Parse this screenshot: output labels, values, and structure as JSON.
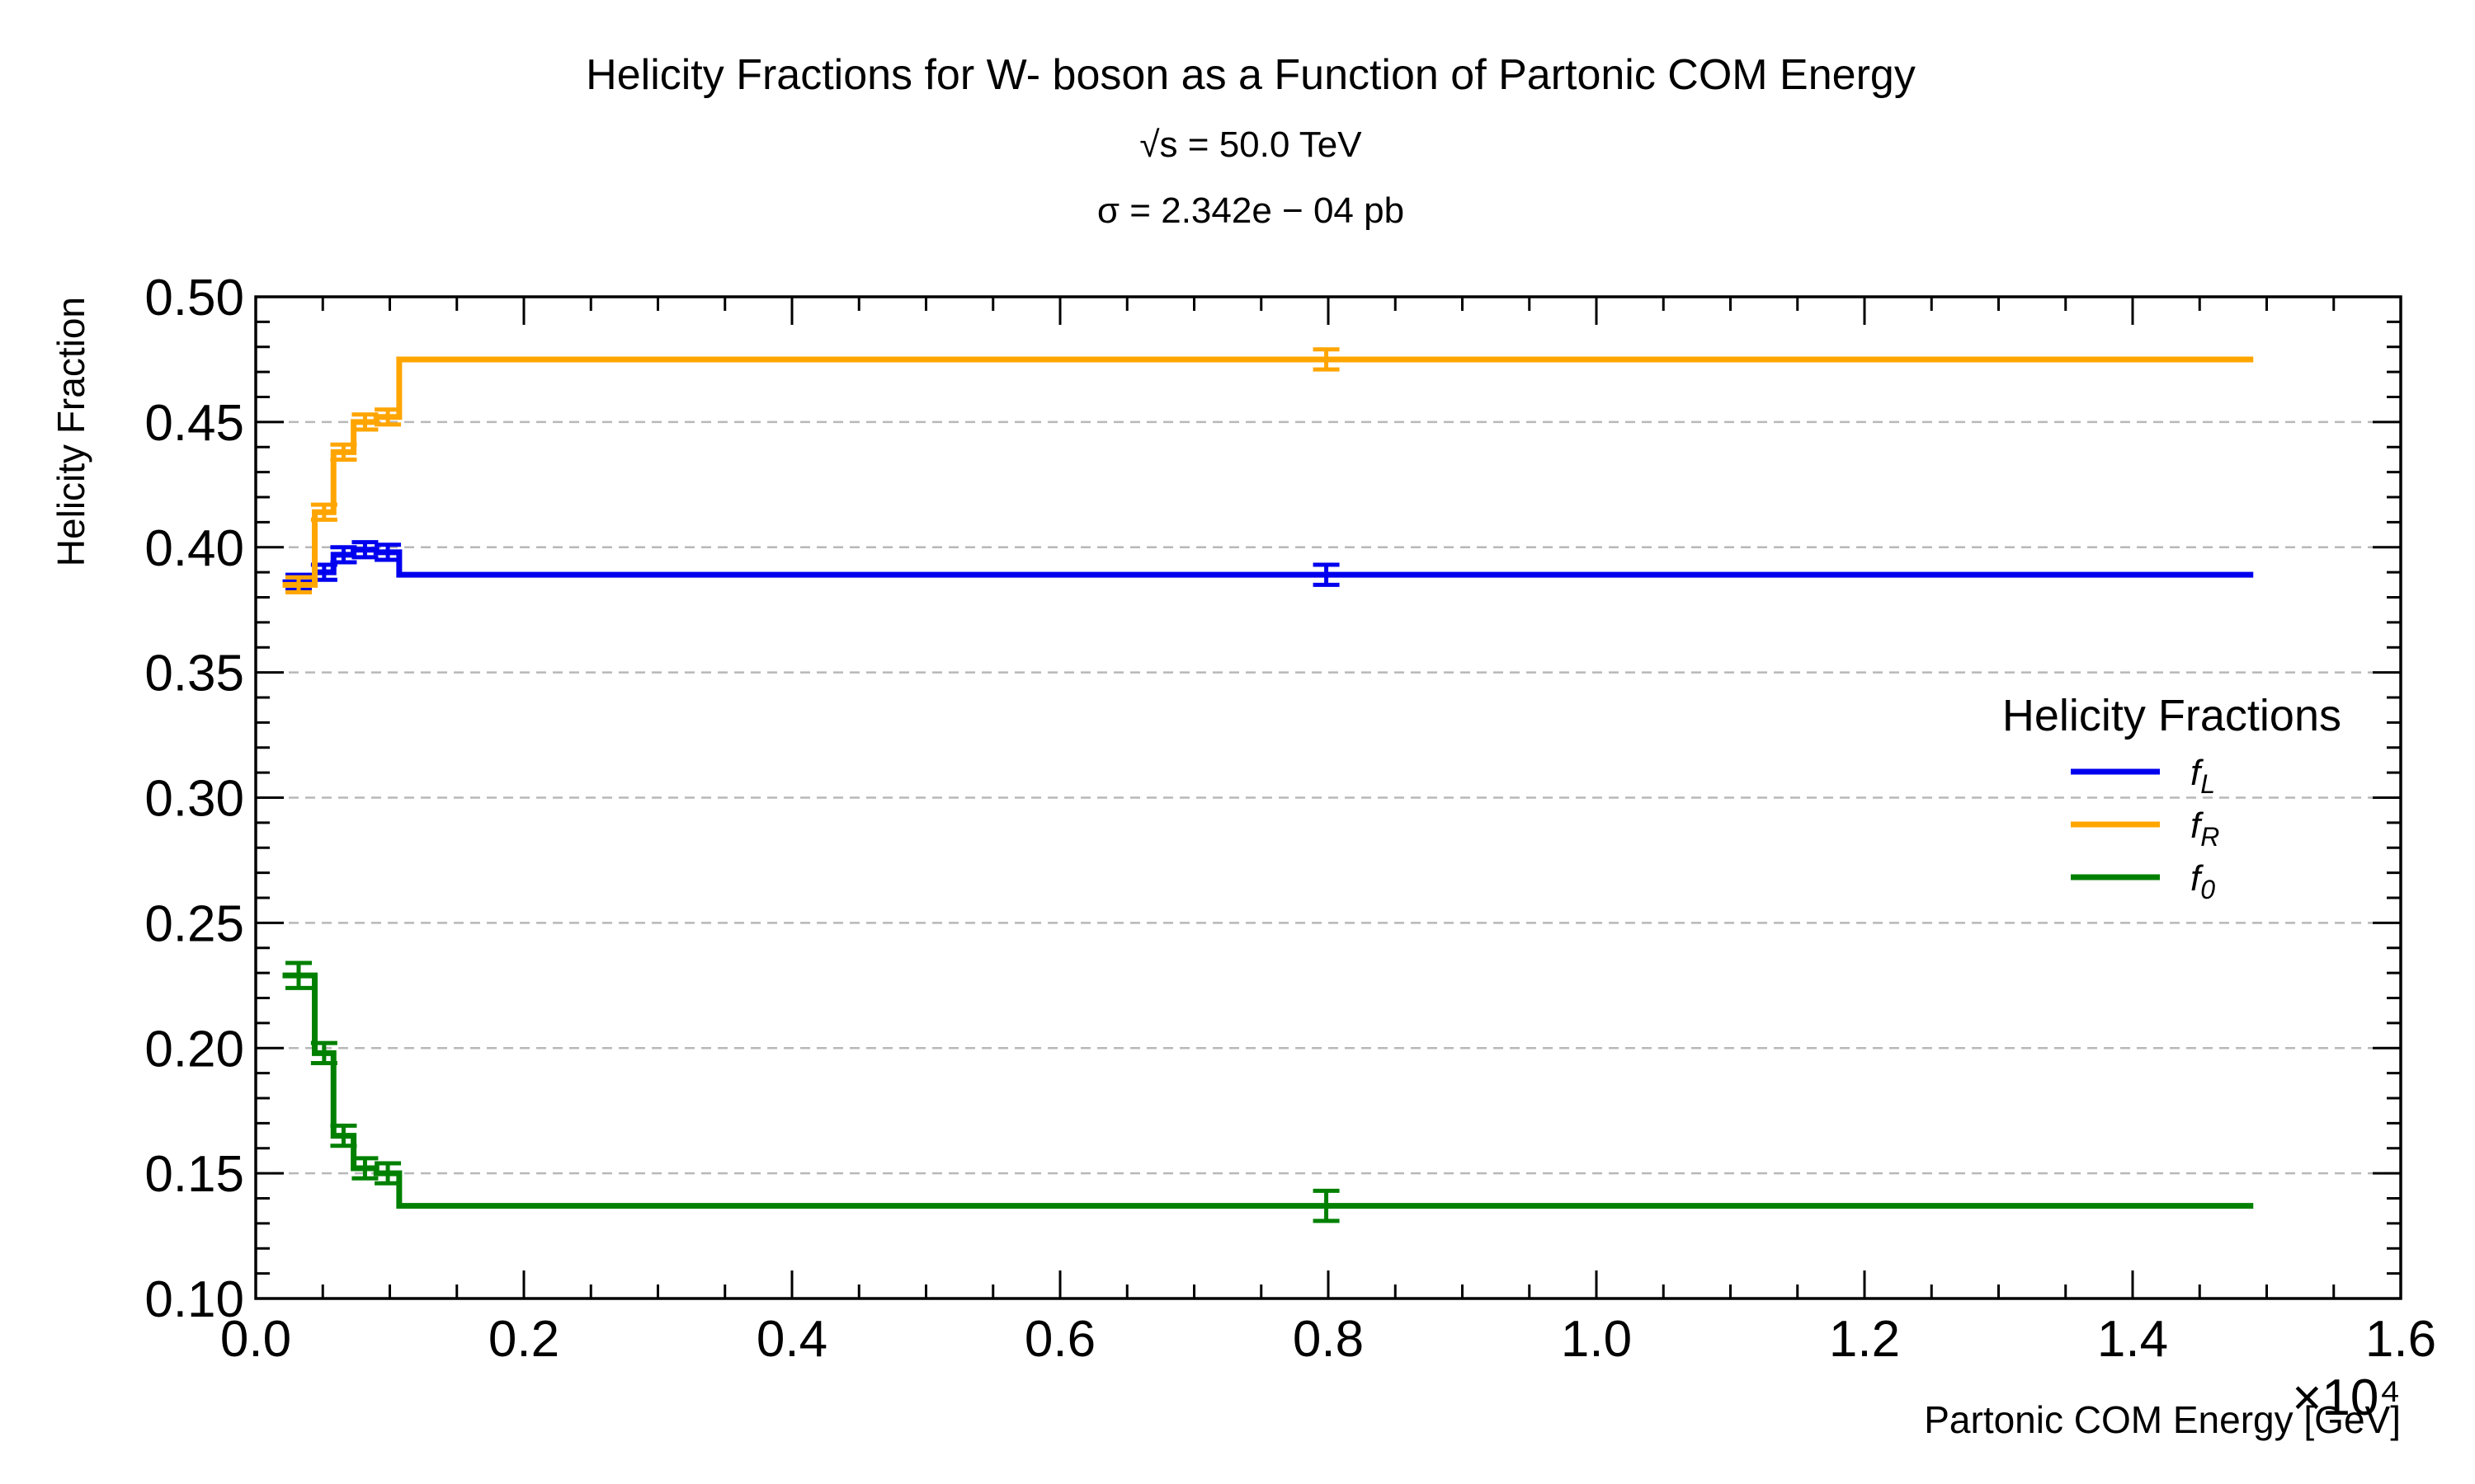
{
  "chart_data": {
    "type": "line",
    "title": "Helicity Fractions for W- boson as a Function of Partonic COM Energy",
    "subtitle_energy": "√s = 50.0 TeV",
    "subtitle_sigma": "σ = 2.342e − 04 pb",
    "xlabel": "Partonic COM Energy [GeV]",
    "ylabel": "Helicity Fraction",
    "x_multiplier": "×10⁴",
    "xlim": [
      0,
      16000
    ],
    "ylim": [
      0.1,
      0.5
    ],
    "x_ticks": [
      "0.0",
      "0.2",
      "0.4",
      "0.6",
      "0.8",
      "1.0",
      "1.2",
      "1.4",
      "1.6"
    ],
    "y_ticks": [
      "0.10",
      "0.15",
      "0.20",
      "0.25",
      "0.30",
      "0.35",
      "0.40",
      "0.45",
      "0.50"
    ],
    "grid": "horizontal-dashed",
    "legend": {
      "title": "Helicity Fractions",
      "placement": "center-right"
    },
    "bin_edges": [
      200,
      440,
      580,
      730,
      900,
      1070,
      14900
    ],
    "series": [
      {
        "name": "f_L",
        "label_main": "f",
        "label_sub": "L",
        "color": "#0000ee",
        "values": [
          0.386,
          0.39,
          0.397,
          0.399,
          0.398,
          0.389
        ],
        "errors": [
          0.003,
          0.003,
          0.003,
          0.003,
          0.003,
          0.004
        ]
      },
      {
        "name": "f_R",
        "label_main": "f",
        "label_sub": "R",
        "color": "#ffa500",
        "values": [
          0.385,
          0.414,
          0.438,
          0.45,
          0.452,
          0.475
        ],
        "errors": [
          0.003,
          0.003,
          0.003,
          0.003,
          0.003,
          0.004
        ]
      },
      {
        "name": "f_0",
        "label_main": "f",
        "label_sub": "0",
        "color": "#008000",
        "values": [
          0.229,
          0.198,
          0.165,
          0.152,
          0.15,
          0.137
        ],
        "errors": [
          0.005,
          0.004,
          0.004,
          0.004,
          0.004,
          0.006
        ]
      }
    ]
  }
}
